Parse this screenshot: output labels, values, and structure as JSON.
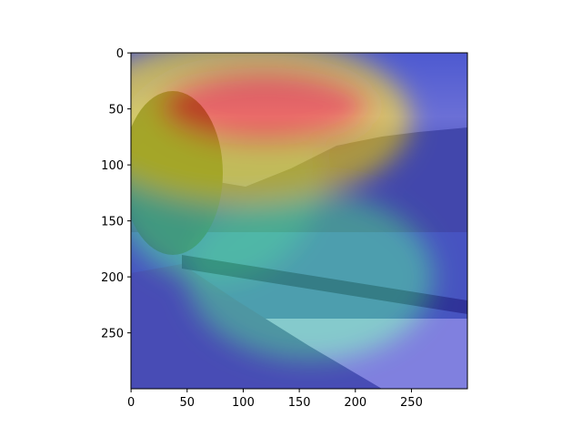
{
  "chart_data": {
    "type": "heatmap",
    "title": "",
    "xlabel": "",
    "ylabel": "",
    "xlim": [
      0,
      299
    ],
    "ylim": [
      299,
      0
    ],
    "x_ticks": [
      0,
      50,
      100,
      150,
      200,
      250
    ],
    "y_ticks": [
      0,
      50,
      100,
      150,
      200,
      250
    ],
    "colormap": "jet",
    "grid": false,
    "legend": "none",
    "heatmap_peaks": [
      {
        "x": 120,
        "y": 48,
        "rx": 95,
        "ry": 35,
        "intensity": 1.0
      },
      {
        "x": 100,
        "y": 60,
        "rx": 150,
        "ry": 75,
        "intensity": 0.6
      },
      {
        "x": 75,
        "y": 110,
        "rx": 95,
        "ry": 95,
        "intensity": 0.45
      },
      {
        "x": 160,
        "y": 200,
        "rx": 110,
        "ry": 75,
        "intensity": 0.32
      }
    ],
    "colors": {
      "peak": "#ff2a1a",
      "high": "#ffd000",
      "mid": "#40e0a0",
      "low": "#2a2ad8",
      "background": "#3333cc"
    }
  }
}
